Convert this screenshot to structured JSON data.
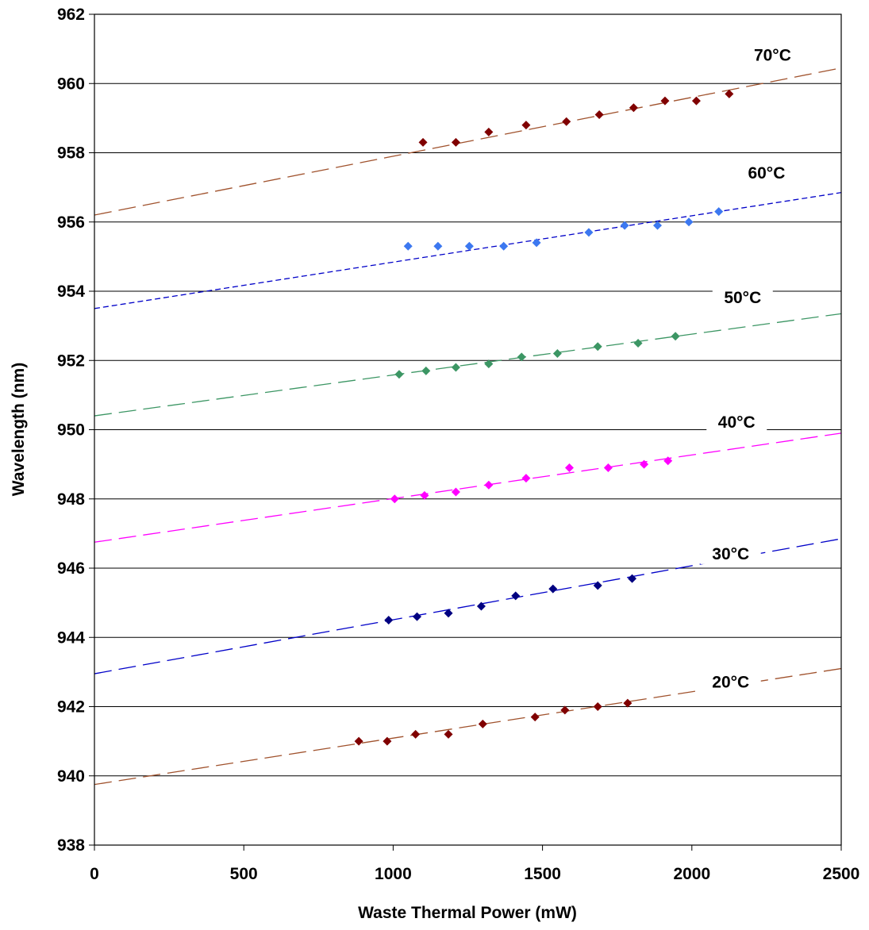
{
  "chart_data": {
    "type": "scatter",
    "xlabel": "Waste Thermal Power (mW)",
    "ylabel": "Wavelength (nm)",
    "xlim": [
      0,
      2500
    ],
    "ylim": [
      938,
      962
    ],
    "xticks": [
      0,
      500,
      1000,
      1500,
      2000,
      2500
    ],
    "yticks": [
      938,
      940,
      942,
      944,
      946,
      948,
      950,
      952,
      954,
      956,
      958,
      960,
      962
    ],
    "grid": "horizontal",
    "legend": "none",
    "series": [
      {
        "name": "70°C",
        "color": "#800000",
        "trend_color": "#a0522d",
        "trend_style": "long-dash",
        "trend": [
          [
            0,
            956.2
          ],
          [
            2500,
            960.45
          ]
        ],
        "x": [
          1100,
          1210,
          1320,
          1445,
          1580,
          1690,
          1805,
          1910,
          2015,
          2125
        ],
        "y": [
          958.3,
          958.3,
          958.6,
          958.8,
          958.9,
          959.1,
          959.3,
          959.5,
          959.5,
          959.7
        ]
      },
      {
        "name": "60°C",
        "color": "#3c78f0",
        "trend_color": "#0000c8",
        "trend_style": "short-dash",
        "trend": [
          [
            0,
            953.5
          ],
          [
            2500,
            956.85
          ]
        ],
        "x": [
          1050,
          1150,
          1255,
          1370,
          1480,
          1655,
          1775,
          1885,
          1990,
          2090
        ],
        "y": [
          955.3,
          955.3,
          955.3,
          955.3,
          955.4,
          955.7,
          955.9,
          955.9,
          956.0,
          956.3
        ]
      },
      {
        "name": "50°C",
        "color": "#3c9664",
        "trend_color": "#3c9664",
        "trend_style": "long-dash",
        "trend": [
          [
            0,
            950.4
          ],
          [
            2500,
            953.35
          ]
        ],
        "x": [
          1020,
          1110,
          1210,
          1320,
          1430,
          1550,
          1685,
          1820,
          1945
        ],
        "y": [
          951.6,
          951.7,
          951.8,
          951.9,
          952.1,
          952.2,
          952.4,
          952.5,
          952.7
        ]
      },
      {
        "name": "40°C",
        "color": "#ff00ff",
        "trend_color": "#ff00ff",
        "trend_style": "long-dash",
        "trend": [
          [
            0,
            946.75
          ],
          [
            2500,
            949.9
          ]
        ],
        "x": [
          1005,
          1105,
          1210,
          1320,
          1445,
          1590,
          1720,
          1840,
          1920
        ],
        "y": [
          948.0,
          948.1,
          948.2,
          948.4,
          948.6,
          948.9,
          948.9,
          949.0,
          949.1
        ]
      },
      {
        "name": "30°C",
        "color": "#000080",
        "trend_color": "#0000c8",
        "trend_style": "long-dash",
        "trend": [
          [
            0,
            942.95
          ],
          [
            2500,
            946.85
          ]
        ],
        "x": [
          985,
          1080,
          1185,
          1295,
          1410,
          1535,
          1685,
          1800
        ],
        "y": [
          944.5,
          944.6,
          944.7,
          944.9,
          945.2,
          945.4,
          945.5,
          945.7
        ]
      },
      {
        "name": "20°C",
        "color": "#800000",
        "trend_color": "#a0522d",
        "trend_style": "long-dash",
        "trend": [
          [
            0,
            939.75
          ],
          [
            2500,
            943.1
          ]
        ],
        "x": [
          885,
          980,
          1075,
          1185,
          1300,
          1475,
          1575,
          1685,
          1785
        ],
        "y": [
          941.0,
          941.0,
          941.2,
          941.2,
          941.5,
          941.7,
          941.9,
          942.0,
          942.1
        ]
      }
    ]
  }
}
